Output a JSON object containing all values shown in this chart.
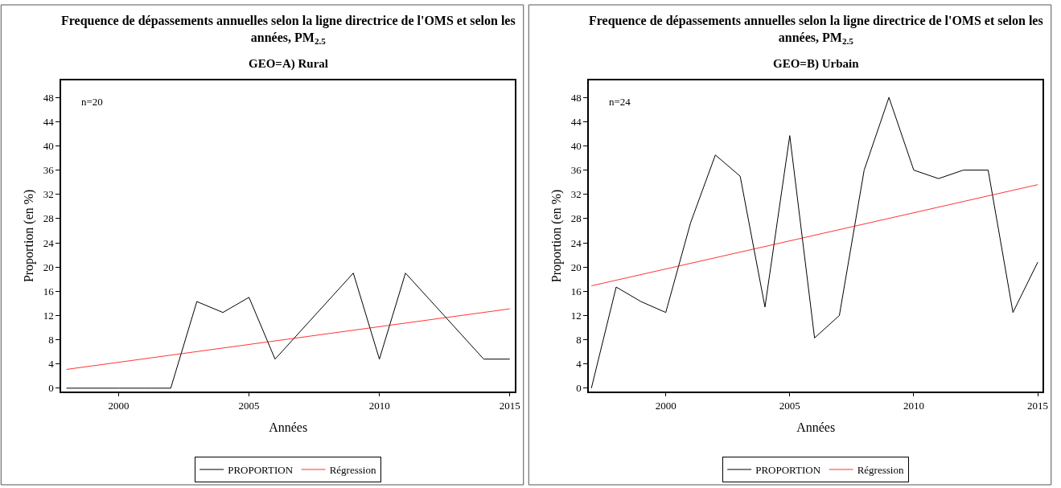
{
  "chart_data": [
    {
      "type": "line",
      "title": "Frequence de dépassements annuelles selon la ligne directrice de l'OMS et selon les années, PM$_{2.5}$",
      "subtitle": "GEO=A) Rural",
      "xlabel": "Années",
      "ylabel": "Proportion (en %)",
      "annotations": [
        "n=20"
      ],
      "series": [
        {
          "name": "PROPORTION",
          "color": "#000000",
          "x": [
            1998,
            1999,
            2000,
            2001,
            2002,
            2003,
            2004,
            2005,
            2006,
            2009,
            2010,
            2011,
            2014,
            2015
          ],
          "values": [
            0,
            0,
            0,
            0,
            0,
            14.3,
            12.5,
            15,
            4.8,
            19,
            4.8,
            19,
            4.8,
            4.8
          ]
        },
        {
          "name": "Régression",
          "color": "#ff0000",
          "x": [
            1998,
            2015
          ],
          "values": [
            3.1,
            13.1
          ]
        }
      ],
      "xlim": [
        1997.8,
        2015.2
      ],
      "xticks": [
        2000,
        2005,
        2010,
        2015
      ],
      "ylim": [
        -0.5,
        50.8
      ],
      "yticks": [
        0,
        4,
        8,
        12,
        16,
        20,
        24,
        28,
        32,
        36,
        40,
        44,
        48
      ],
      "legend": "bottom",
      "marker": "none",
      "line_style": "solid"
    },
    {
      "type": "line",
      "title": "Frequence de dépassements annuelles selon la ligne directrice de l'OMS et selon les années, PM$_{2.5}$",
      "subtitle": "GEO=B) Urbain",
      "xlabel": "Années",
      "ylabel": "Proportion (en %)",
      "annotations": [
        "n=24"
      ],
      "series": [
        {
          "name": "PROPORTION",
          "color": "#000000",
          "x": [
            1997,
            1998,
            1999,
            2000,
            2001,
            2002,
            2003,
            2004,
            2005,
            2006,
            2007,
            2008,
            2009,
            2010,
            2011,
            2012,
            2013,
            2014,
            2015
          ],
          "values": [
            0,
            16.7,
            14.3,
            12.5,
            27.3,
            38.5,
            35,
            13.4,
            41.7,
            8.3,
            12,
            36,
            48,
            36,
            34.6,
            36,
            36,
            12.5,
            20.8
          ]
        },
        {
          "name": "Régression",
          "color": "#ff0000",
          "x": [
            1997,
            2015
          ],
          "values": [
            16.9,
            33.6
          ]
        }
      ],
      "xlim": [
        1996.9,
        2015.2
      ],
      "xticks": [
        2000,
        2005,
        2010,
        2015
      ],
      "ylim": [
        -0.5,
        50.8
      ],
      "yticks": [
        0,
        4,
        8,
        12,
        16,
        20,
        24,
        28,
        32,
        36,
        40,
        44,
        48
      ],
      "legend": "bottom",
      "marker": "none",
      "line_style": "solid"
    }
  ]
}
